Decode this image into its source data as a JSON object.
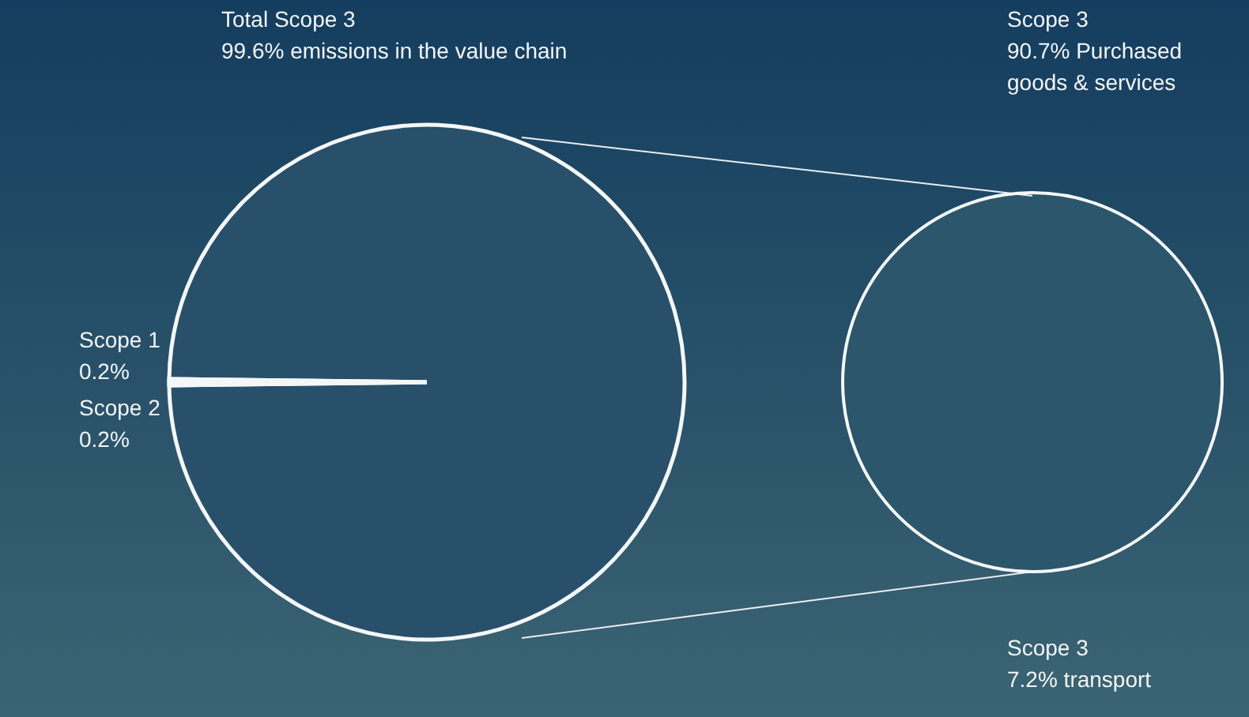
{
  "chart_data": [
    {
      "type": "pie",
      "categories": [
        "Total Scope 3",
        "Scope 1",
        "Scope 2"
      ],
      "values": [
        99.6,
        0.2,
        0.2
      ],
      "value_labels": [
        "99.6% emissions in the value chain",
        "0.2%",
        "0.2%"
      ],
      "colors": [
        "#28506a",
        "#c5dde3",
        "#c5dde3"
      ]
    },
    {
      "type": "pie",
      "categories": [
        "Scope 3",
        "Scope 3",
        null
      ],
      "values": [
        90.7,
        7.2,
        2.1
      ],
      "value_labels": [
        "90.7% Purchased goods & services",
        "7.2% transport",
        null
      ],
      "colors": [
        "#2c566c",
        "#2c566c",
        "#2c566c"
      ]
    }
  ]
}
